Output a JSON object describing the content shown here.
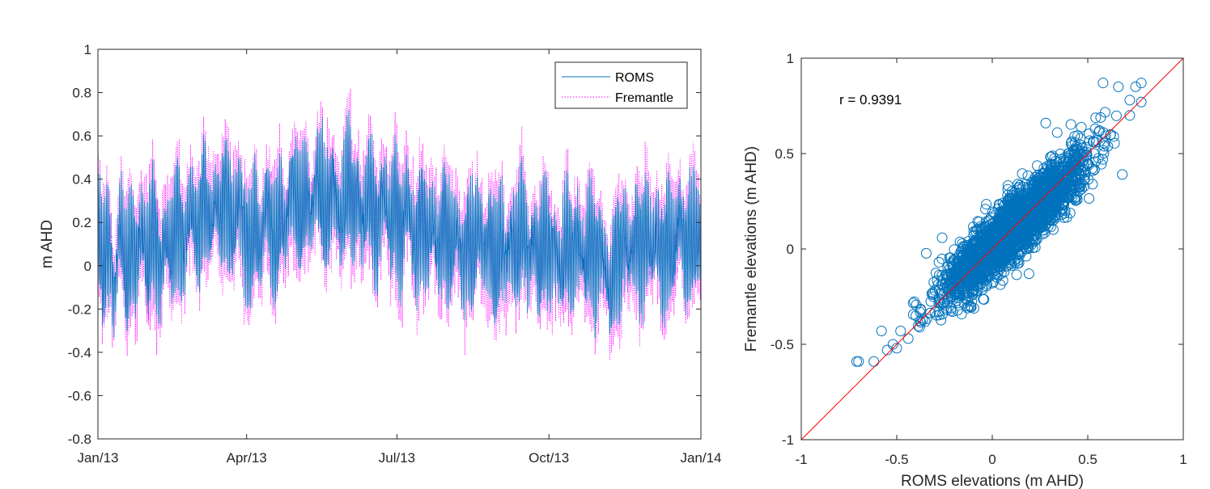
{
  "chart_data": [
    {
      "type": "line",
      "title": "",
      "xlabel": "",
      "ylabel": "m AHD",
      "ylim": [
        -0.8,
        1
      ],
      "yticks": [
        -0.8,
        -0.6,
        -0.4,
        -0.2,
        0,
        0.2,
        0.4,
        0.6,
        0.8,
        1
      ],
      "ytick_labels": [
        "-0.8",
        "-0.6",
        "-0.4",
        "-0.2",
        "0",
        "0.2",
        "0.4",
        "0.6",
        "0.8",
        "1"
      ],
      "xlim_days": [
        0,
        365
      ],
      "xticks_days": [
        0,
        90,
        181,
        273,
        365
      ],
      "xtick_labels": [
        "Jan/13",
        "Apr/13",
        "Jul/13",
        "Oct/13",
        "Jan/14"
      ],
      "legend_position": "top-right",
      "sampling": "hourly, Jan 2013 – Jan 2014 (approximate envelope)",
      "daily_mean_ROMS": [
        0.22,
        0.15,
        0.05,
        -0.05,
        0.0,
        0.1,
        0.15,
        0.08,
        0.02,
        -0.1,
        -0.15,
        -0.05,
        0.1,
        0.2,
        0.18,
        0.1,
        0.0,
        -0.08,
        -0.05,
        0.05,
        0.1,
        0.12,
        0.05,
        0.0,
        0.05,
        0.12,
        0.18,
        0.15,
        0.1,
        0.05,
        0.0,
        0.05,
        0.12,
        0.2,
        0.18,
        0.12,
        0.05,
        0.0,
        -0.05,
        0.05,
        0.1,
        0.15,
        0.12,
        0.08,
        0.05,
        0.08,
        0.12,
        0.18,
        0.22,
        0.2,
        0.15,
        0.1,
        0.05,
        0.1,
        0.18,
        0.25,
        0.3,
        0.28,
        0.22,
        0.18,
        0.12,
        0.15,
        0.22,
        0.3,
        0.35,
        0.3,
        0.25,
        0.2,
        0.15,
        0.2,
        0.25,
        0.3,
        0.28,
        0.25,
        0.2,
        0.25,
        0.3,
        0.35,
        0.32,
        0.28,
        0.22,
        0.18,
        0.15,
        0.2,
        0.28,
        0.32,
        0.3,
        0.25,
        0.2,
        0.15,
        0.12,
        0.08,
        0.05,
        0.1,
        0.15,
        0.2,
        0.15,
        0.1,
        0.05,
        0.1,
        0.18,
        0.25,
        0.3,
        0.28,
        0.22,
        0.15,
        0.1,
        0.08,
        0.12,
        0.18,
        0.22,
        0.25,
        0.2,
        0.15,
        0.18,
        0.25,
        0.32,
        0.38,
        0.4,
        0.35,
        0.3,
        0.25,
        0.2,
        0.22,
        0.28,
        0.32,
        0.35,
        0.3,
        0.25,
        0.22,
        0.28,
        0.35,
        0.4,
        0.45,
        0.4,
        0.35,
        0.3,
        0.25,
        0.2,
        0.25,
        0.3,
        0.35,
        0.4,
        0.38,
        0.32,
        0.25,
        0.2,
        0.18,
        0.22,
        0.28,
        0.35,
        0.4,
        0.38,
        0.32,
        0.28,
        0.25,
        0.3,
        0.35,
        0.3,
        0.25,
        0.22,
        0.2,
        0.25,
        0.3,
        0.35,
        0.32,
        0.28,
        0.22,
        0.18,
        0.15,
        0.2,
        0.28,
        0.32,
        0.35,
        0.3,
        0.25,
        0.2,
        0.18,
        0.22,
        0.28,
        0.3,
        0.25,
        0.2,
        0.15,
        0.12,
        0.18,
        0.25,
        0.3,
        0.28,
        0.22,
        0.15,
        0.1,
        0.05,
        0.08,
        0.15,
        0.22,
        0.25,
        0.2,
        0.15,
        0.1,
        0.12,
        0.18,
        0.22,
        0.2,
        0.15,
        0.1,
        0.05,
        0.1,
        0.15,
        0.2,
        0.22,
        0.18,
        0.12,
        0.08,
        0.05,
        0.1,
        0.15,
        0.18,
        0.15,
        0.1,
        0.05,
        0.02,
        0.05,
        0.1,
        0.15,
        0.12,
        0.08,
        0.05,
        0.1,
        0.15,
        0.2,
        0.18,
        0.12,
        0.08,
        0.05,
        0.08,
        0.12,
        0.15,
        0.1,
        0.05,
        0.0,
        -0.02,
        0.02,
        0.08,
        0.12,
        0.1,
        0.05,
        0.02,
        0.05,
        0.1,
        0.15,
        0.12,
        0.08,
        0.05,
        0.08,
        0.12,
        0.18,
        0.2,
        0.15,
        0.1,
        0.05,
        0.02,
        0.05,
        0.1,
        0.12,
        0.1,
        0.05,
        0.0,
        0.02,
        0.08,
        0.12,
        0.15,
        0.1,
        0.05,
        0.02,
        0.05,
        0.1,
        0.08,
        0.05,
        0.0,
        -0.05,
        -0.02,
        0.05,
        0.1,
        0.12,
        0.08,
        0.05,
        0.02,
        0.05,
        0.1,
        0.15,
        0.12,
        0.08,
        0.05,
        0.02,
        0.0,
        0.05,
        0.1,
        0.12,
        0.1,
        0.05,
        0.02,
        0.05,
        0.08,
        0.1,
        0.08,
        0.05,
        0.0,
        -0.05,
        -0.1,
        -0.15,
        -0.1,
        -0.02,
        0.05,
        0.08,
        0.05,
        0.02,
        0.05,
        0.1,
        0.12,
        0.1,
        0.05,
        0.02,
        0.05,
        0.08,
        0.12,
        0.15,
        0.12,
        0.08,
        0.05,
        0.1,
        0.15,
        0.18,
        0.15,
        0.1,
        0.05,
        0.08,
        0.12,
        0.15,
        0.12,
        0.08,
        0.05,
        0.02,
        0.05,
        0.1,
        0.15,
        0.12,
        0.08,
        0.05,
        0.1,
        0.15,
        0.2,
        0.25,
        0.2,
        0.15,
        0.1,
        0.05,
        0.08,
        0.12
      ],
      "series": [
        {
          "name": "ROMS",
          "color": "#0072BD",
          "style": "solid"
        },
        {
          "name": "Fremantle",
          "color": "#FF00FF",
          "style": "dotted"
        }
      ]
    },
    {
      "type": "scatter",
      "title": "",
      "xlabel": "ROMS elevations (m AHD)",
      "ylabel": "Fremantle elevations (m AHD)",
      "xlim": [
        -1,
        1
      ],
      "ylim": [
        -1,
        1
      ],
      "xticks": [
        -1,
        -0.5,
        0,
        0.5,
        1
      ],
      "xtick_labels": [
        "-1",
        "-0.5",
        "0",
        "0.5",
        "1"
      ],
      "yticks": [
        -1,
        -0.5,
        0,
        0.5,
        1
      ],
      "ytick_labels": [
        "-1",
        "-0.5",
        "0",
        "0.5",
        "1"
      ],
      "annotation": "r = 0.9391",
      "correlation": 0.9391,
      "marker_color": "#0072BD",
      "reference_line": {
        "from": [
          -1,
          -1
        ],
        "to": [
          1,
          1
        ],
        "color": "#FF0000"
      },
      "notable_points": [
        [
          -0.71,
          -0.59
        ],
        [
          -0.7,
          -0.59
        ],
        [
          -0.62,
          -0.59
        ],
        [
          -0.58,
          -0.43
        ],
        [
          -0.55,
          -0.53
        ],
        [
          -0.52,
          -0.5
        ],
        [
          -0.5,
          -0.52
        ],
        [
          -0.48,
          -0.43
        ],
        [
          -0.44,
          -0.47
        ],
        [
          -0.4,
          -0.35
        ],
        [
          -0.38,
          -0.41
        ],
        [
          -0.3,
          -0.33
        ],
        [
          0.28,
          0.66
        ],
        [
          0.34,
          0.61
        ],
        [
          0.58,
          0.87
        ],
        [
          0.66,
          0.85
        ],
        [
          0.75,
          0.85
        ],
        [
          0.78,
          0.87
        ],
        [
          0.72,
          0.78
        ],
        [
          0.78,
          0.77
        ],
        [
          0.72,
          0.7
        ],
        [
          0.62,
          0.6
        ]
      ],
      "cloud_count": 2600
    }
  ],
  "colors": {
    "roms": "#0072BD",
    "fremantle": "#FF00FF",
    "reference": "#FF0000",
    "axis": "#262626"
  }
}
